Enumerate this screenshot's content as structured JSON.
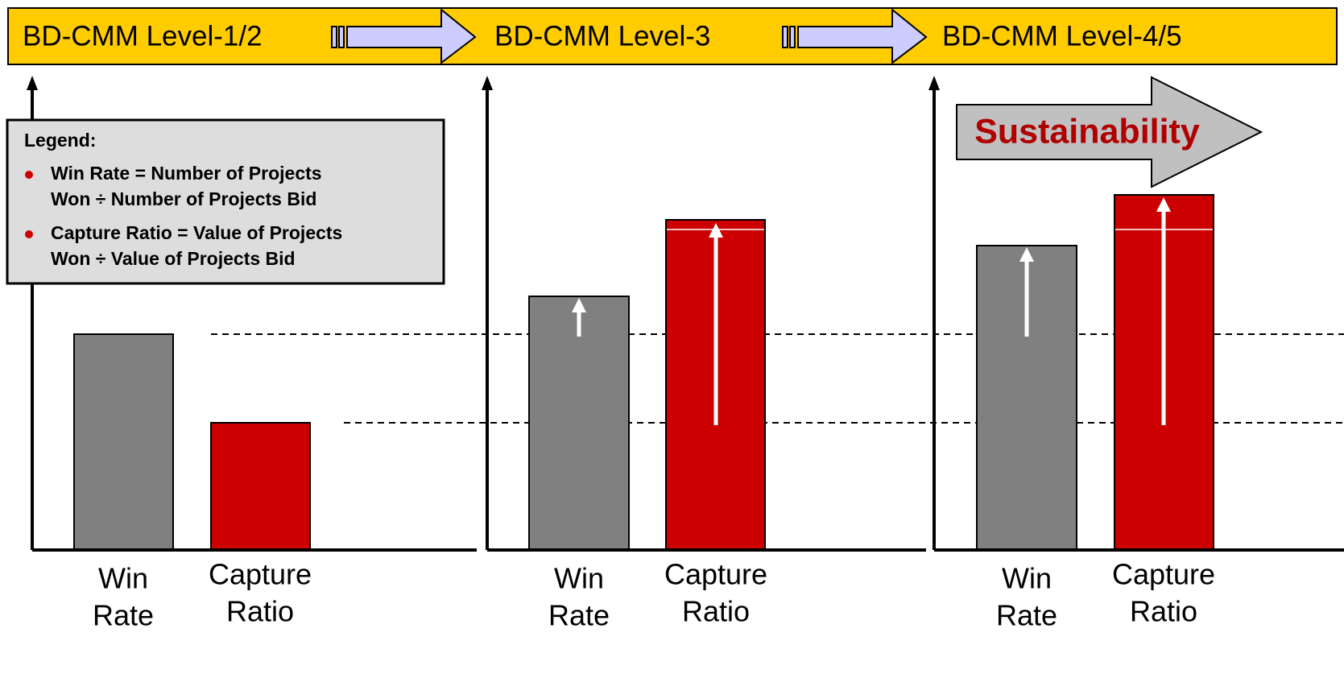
{
  "header": {
    "stages": [
      "BD-CMM Level-1/2",
      "BD-CMM Level-3",
      "BD-CMM Level-4/5"
    ]
  },
  "legend": {
    "title": "Legend:",
    "items": [
      {
        "lines": [
          "Win Rate = Number of Projects",
          "Won ÷ Number of Projects Bid"
        ]
      },
      {
        "lines": [
          "Capture Ratio = Value of Projects",
          "Won ÷ Value of Projects Bid"
        ]
      }
    ]
  },
  "callout": "Sustainability",
  "bar_labels": [
    {
      "lines": [
        "Win",
        "Rate"
      ]
    },
    {
      "lines": [
        "Capture",
        "Ratio"
      ]
    }
  ]
}
